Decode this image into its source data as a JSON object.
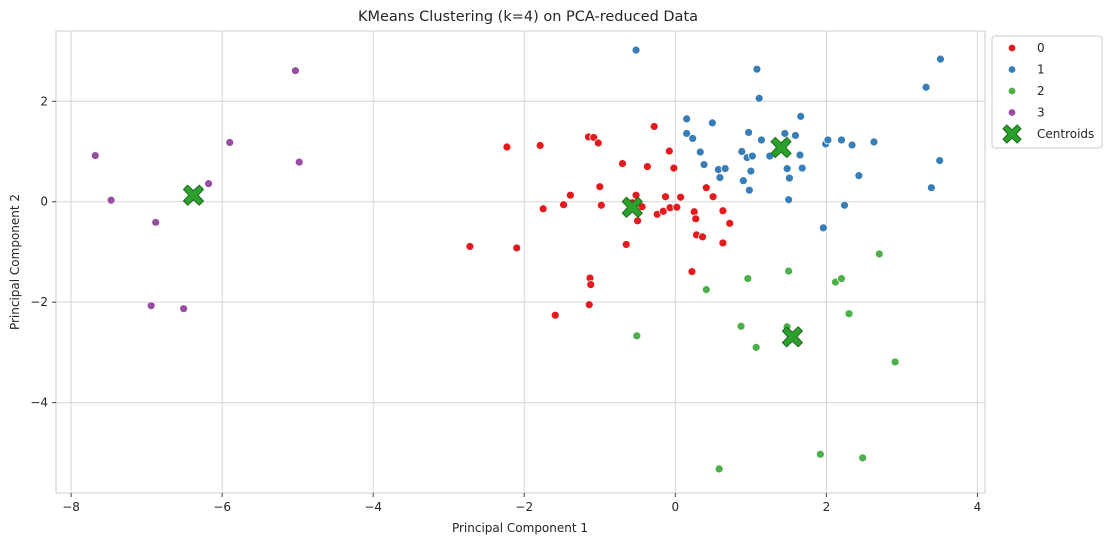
{
  "chart_data": {
    "type": "scatter",
    "title": "KMeans Clustering (k=4) on PCA-reduced Data",
    "xlabel": "Principal Component 1",
    "ylabel": "Principal Component 2",
    "xlim": [
      -8.2,
      4.1
    ],
    "ylim": [
      -5.8,
      3.4
    ],
    "xticks": [
      -8,
      -6,
      -4,
      -2,
      0,
      2,
      4
    ],
    "yticks": [
      -4,
      -2,
      0,
      2
    ],
    "grid": true,
    "legend": {
      "placement": "upper-right-outside"
    },
    "series": [
      {
        "name": "0",
        "color": "#e41a1c",
        "points": [
          [
            -2.72,
            -0.89
          ],
          [
            -2.23,
            1.09
          ],
          [
            -2.1,
            -0.92
          ],
          [
            -1.79,
            1.12
          ],
          [
            -1.75,
            -0.14
          ],
          [
            -1.59,
            -2.26
          ],
          [
            -1.48,
            -0.06
          ],
          [
            -1.39,
            0.13
          ],
          [
            -1.15,
            1.29
          ],
          [
            -1.08,
            1.28
          ],
          [
            -1.13,
            -1.52
          ],
          [
            -1.12,
            -1.65
          ],
          [
            -1.14,
            -2.05
          ],
          [
            -1.02,
            1.17
          ],
          [
            -1.0,
            0.3
          ],
          [
            -0.98,
            -0.07
          ],
          [
            -0.7,
            0.76
          ],
          [
            -0.65,
            -0.85
          ],
          [
            -0.57,
            -0.02
          ],
          [
            -0.52,
            0.13
          ],
          [
            -0.5,
            -0.38
          ],
          [
            -0.44,
            -0.1
          ],
          [
            -0.37,
            0.7
          ],
          [
            -0.28,
            1.5
          ],
          [
            -0.24,
            -0.25
          ],
          [
            -0.16,
            -0.19
          ],
          [
            -0.13,
            0.1
          ],
          [
            -0.08,
            1.01
          ],
          [
            -0.02,
            0.67
          ],
          [
            -0.07,
            -0.12
          ],
          [
            0.02,
            -0.11
          ],
          [
            0.07,
            0.09
          ],
          [
            0.22,
            -1.39
          ],
          [
            0.25,
            -0.2
          ],
          [
            0.27,
            -0.34
          ],
          [
            0.28,
            -0.66
          ],
          [
            0.36,
            -0.7
          ],
          [
            0.41,
            0.28
          ],
          [
            0.5,
            0.1
          ],
          [
            0.63,
            -0.18
          ],
          [
            0.63,
            -0.82
          ],
          [
            0.72,
            -0.43
          ]
        ]
      },
      {
        "name": "1",
        "color": "#377eb8",
        "points": [
          [
            -0.52,
            3.02
          ],
          [
            0.15,
            1.65
          ],
          [
            0.15,
            1.36
          ],
          [
            0.23,
            1.26
          ],
          [
            0.33,
            0.99
          ],
          [
            0.38,
            0.74
          ],
          [
            0.49,
            1.57
          ],
          [
            0.57,
            0.64
          ],
          [
            0.59,
            0.48
          ],
          [
            0.66,
            0.66
          ],
          [
            0.88,
            1.0
          ],
          [
            0.9,
            0.42
          ],
          [
            0.95,
            0.88
          ],
          [
            0.97,
            1.38
          ],
          [
            0.98,
            0.23
          ],
          [
            1.0,
            0.61
          ],
          [
            1.02,
            0.91
          ],
          [
            1.08,
            2.64
          ],
          [
            1.11,
            2.06
          ],
          [
            1.14,
            1.23
          ],
          [
            1.25,
            0.91
          ],
          [
            1.45,
            1.36
          ],
          [
            1.48,
            0.66
          ],
          [
            1.5,
            0.04
          ],
          [
            1.51,
            0.47
          ],
          [
            1.59,
            1.32
          ],
          [
            1.65,
            0.93
          ],
          [
            1.66,
            1.7
          ],
          [
            1.68,
            0.67
          ],
          [
            1.96,
            -0.52
          ],
          [
            1.99,
            1.15
          ],
          [
            2.02,
            1.23
          ],
          [
            2.2,
            1.23
          ],
          [
            2.24,
            -0.07
          ],
          [
            2.34,
            1.13
          ],
          [
            2.43,
            0.52
          ],
          [
            2.63,
            1.19
          ],
          [
            3.32,
            2.28
          ],
          [
            3.39,
            0.28
          ],
          [
            3.5,
            0.82
          ],
          [
            3.51,
            2.84
          ]
        ]
      },
      {
        "name": "2",
        "color": "#4daf4a",
        "points": [
          [
            -0.51,
            -2.67
          ],
          [
            0.41,
            -1.75
          ],
          [
            0.58,
            -5.32
          ],
          [
            0.87,
            -2.48
          ],
          [
            0.96,
            -1.53
          ],
          [
            1.07,
            -2.9
          ],
          [
            1.48,
            -2.49
          ],
          [
            1.5,
            -1.38
          ],
          [
            1.92,
            -5.03
          ],
          [
            2.12,
            -1.6
          ],
          [
            2.2,
            -1.53
          ],
          [
            2.3,
            -2.23
          ],
          [
            2.48,
            -5.1
          ],
          [
            2.7,
            -1.04
          ],
          [
            2.91,
            -3.19
          ]
        ]
      },
      {
        "name": "3",
        "color": "#984ea3",
        "points": [
          [
            -7.68,
            0.92
          ],
          [
            -7.47,
            0.03
          ],
          [
            -6.94,
            -2.07
          ],
          [
            -6.88,
            -0.41
          ],
          [
            -6.51,
            -2.13
          ],
          [
            -6.18,
            0.36
          ],
          [
            -5.9,
            1.18
          ],
          [
            -5.03,
            2.61
          ],
          [
            -4.98,
            0.79
          ]
        ]
      }
    ],
    "centroids": {
      "name": "Centroids",
      "color": "#2ca02c",
      "points": [
        [
          -6.38,
          0.13
        ],
        [
          -0.57,
          -0.11
        ],
        [
          1.4,
          1.08
        ],
        [
          1.55,
          -2.69
        ]
      ]
    }
  }
}
